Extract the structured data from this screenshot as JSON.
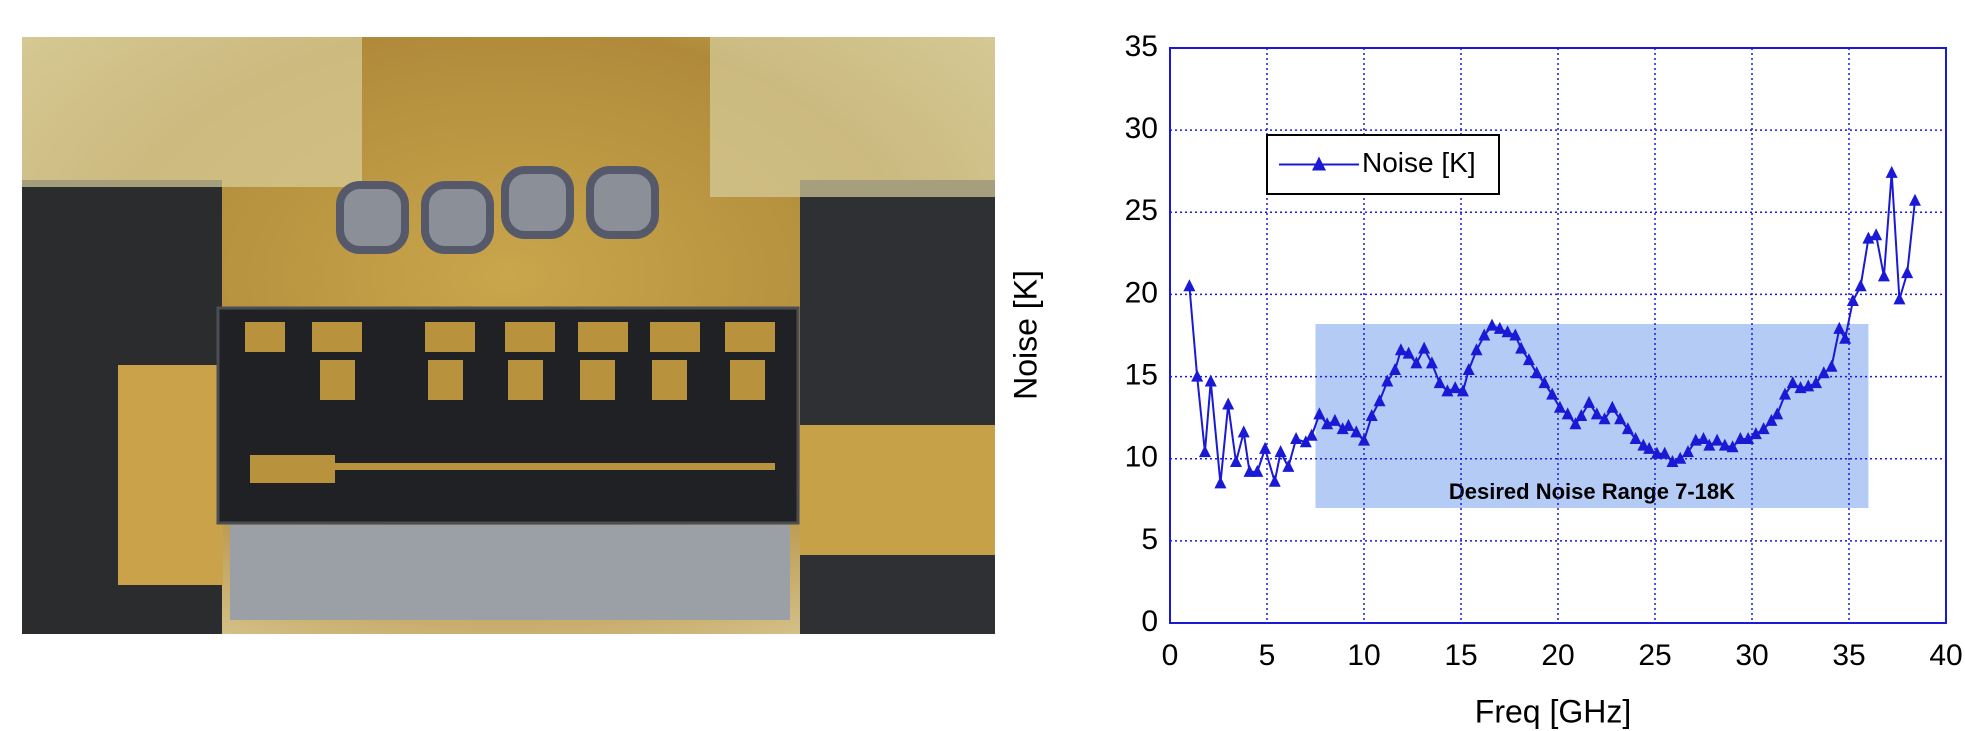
{
  "chart_data": {
    "type": "line",
    "xlabel": "Freq [GHz]",
    "ylabel": "Noise [K]",
    "xlim": [
      0,
      40
    ],
    "xticks": [
      0,
      5,
      10,
      15,
      20,
      25,
      30,
      35,
      40
    ],
    "ylim": [
      0,
      35
    ],
    "yticks": [
      0,
      5,
      10,
      15,
      20,
      25,
      30,
      35
    ],
    "grid": true,
    "legend": "upper left",
    "band": {
      "x": [
        7.5,
        36
      ],
      "y": [
        7,
        18.2
      ],
      "color": "#b4ccf5",
      "label": "Desired Noise Range 7-18K"
    },
    "series": [
      {
        "name": "Noise [K]",
        "color": "#1a1ad6",
        "x": [
          1.0,
          1.4,
          1.8,
          2.1,
          2.6,
          3.0,
          3.4,
          3.8,
          4.1,
          4.5,
          4.9,
          5.4,
          5.7,
          6.1,
          6.5,
          7.0,
          7.3,
          7.7,
          8.1,
          8.5,
          8.9,
          9.2,
          9.6,
          10.0,
          10.4,
          10.8,
          11.2,
          11.6,
          11.9,
          12.3,
          12.7,
          13.1,
          13.5,
          13.9,
          14.3,
          14.7,
          15.1,
          15.4,
          15.8,
          16.2,
          16.6,
          17.0,
          17.4,
          17.8,
          18.1,
          18.5,
          18.9,
          19.3,
          19.7,
          20.1,
          20.5,
          20.9,
          21.2,
          21.6,
          22.0,
          22.4,
          22.8,
          23.2,
          23.6,
          24.0,
          24.4,
          24.7,
          25.1,
          25.5,
          25.9,
          26.3,
          26.7,
          27.1,
          27.5,
          27.8,
          28.2,
          28.6,
          29.0,
          29.4,
          29.8,
          30.2,
          30.6,
          31.0,
          31.3,
          31.7,
          32.1,
          32.5,
          32.9,
          33.3,
          33.7,
          34.1,
          34.5,
          34.8,
          35.2,
          35.6,
          36.0,
          36.4,
          36.8,
          37.2,
          37.6,
          38.0,
          38.4
        ],
        "values": [
          20.5,
          15.0,
          10.4,
          14.7,
          8.5,
          13.3,
          9.8,
          11.6,
          9.2,
          9.2,
          10.6,
          8.6,
          10.4,
          9.5,
          11.2,
          11.0,
          11.4,
          12.7,
          12.1,
          12.3,
          11.8,
          12.0,
          11.6,
          11.1,
          12.6,
          13.5,
          14.7,
          15.4,
          16.6,
          16.4,
          15.8,
          16.7,
          15.8,
          14.6,
          14.1,
          14.3,
          14.1,
          15.4,
          16.6,
          17.5,
          18.1,
          17.9,
          17.7,
          17.5,
          16.7,
          16.0,
          15.2,
          14.6,
          13.9,
          13.1,
          12.7,
          12.1,
          12.6,
          13.4,
          12.7,
          12.4,
          13.1,
          12.4,
          11.8,
          11.2,
          10.8,
          10.6,
          10.3,
          10.3,
          9.8,
          10.0,
          10.4,
          11.1,
          11.2,
          10.8,
          11.1,
          10.8,
          10.7,
          11.2,
          11.2,
          11.5,
          11.8,
          12.3,
          12.7,
          13.9,
          14.6,
          14.3,
          14.4,
          14.6,
          15.2,
          15.6,
          17.9,
          17.3,
          19.6,
          20.5,
          23.4,
          23.6,
          21.1,
          27.4,
          19.7,
          21.3,
          25.7
        ]
      }
    ]
  }
}
